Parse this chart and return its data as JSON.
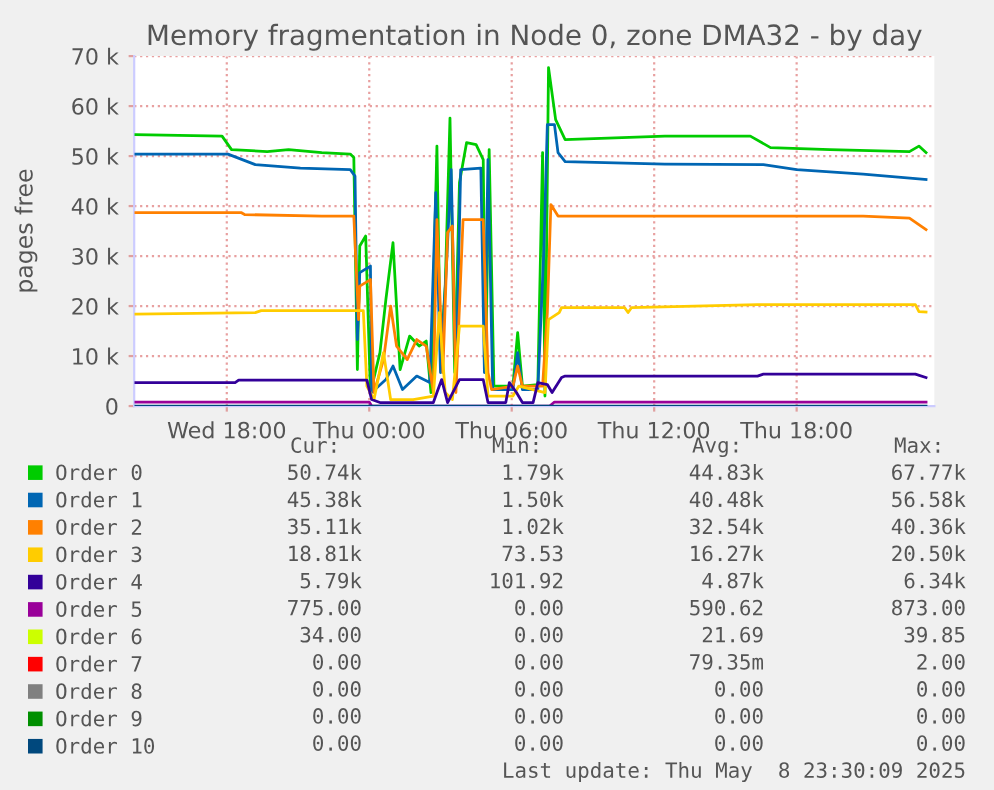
{
  "chart_data": {
    "type": "line",
    "title": "Memory fragmentation in Node 0, zone DMA32 - by day",
    "ylabel": "pages free",
    "xlim": [
      "2025-05-07T14:06",
      "2025-05-08T23:48"
    ],
    "ylim": [
      0,
      70000
    ],
    "xticks": [
      {
        "value": "2025-05-07T18:00",
        "label": "Wed 18:00"
      },
      {
        "value": "2025-05-08T00:00",
        "label": "Thu 00:00"
      },
      {
        "value": "2025-05-08T06:00",
        "label": "Thu 06:00"
      },
      {
        "value": "2025-05-08T12:00",
        "label": "Thu 12:00"
      },
      {
        "value": "2025-05-08T18:00",
        "label": "Thu 18:00"
      }
    ],
    "yticks": [
      0,
      {
        "value": 10000,
        "label": "10 k"
      },
      {
        "value": 20000,
        "label": "20 k"
      },
      {
        "value": 30000,
        "label": "30 k"
      },
      {
        "value": 40000,
        "label": "40 k"
      },
      {
        "value": 50000,
        "label": "50 k"
      },
      {
        "value": 60000,
        "label": "60 k"
      },
      {
        "value": 70000,
        "label": "70 k"
      }
    ],
    "grid": true,
    "legend": "bottom",
    "marker": "none",
    "line_style": "solid",
    "series": [
      {
        "name": "Order 0",
        "color": "#00cc00",
        "x": [
          "2025-05-07T14:10",
          "2025-05-07T17:48",
          "2025-05-07T18:12",
          "2025-05-07T19:42",
          "2025-05-07T20:36",
          "2025-05-07T22:00",
          "2025-05-07T23:12",
          "2025-05-07T23:21",
          "2025-05-07T23:30",
          "2025-05-07T23:36",
          "2025-05-07T23:51",
          "2025-05-08T00:03",
          "2025-05-08T00:27",
          "2025-05-08T00:42",
          "2025-05-08T01:00",
          "2025-05-08T01:18",
          "2025-05-08T01:42",
          "2025-05-08T02:06",
          "2025-05-08T02:24",
          "2025-05-08T02:36",
          "2025-05-08T02:51",
          "2025-05-08T03:00",
          "2025-05-08T03:12",
          "2025-05-08T03:24",
          "2025-05-08T03:36",
          "2025-05-08T03:48",
          "2025-05-08T04:06",
          "2025-05-08T04:30",
          "2025-05-08T04:48",
          "2025-05-08T04:54",
          "2025-05-08T05:03",
          "2025-05-08T05:15",
          "2025-05-08T06:03",
          "2025-05-08T06:15",
          "2025-05-08T06:27",
          "2025-05-08T07:06",
          "2025-05-08T07:18",
          "2025-05-08T07:24",
          "2025-05-08T07:33",
          "2025-05-08T07:51",
          "2025-05-08T08:15",
          "2025-05-08T12:27",
          "2025-05-08T16:03",
          "2025-05-08T16:54",
          "2025-05-08T19:24",
          "2025-05-08T22:45",
          "2025-05-08T23:09",
          "2025-05-08T23:27"
        ],
        "values": [
          54300,
          54000,
          51300,
          50900,
          51300,
          50700,
          50400,
          49700,
          7300,
          32000,
          34000,
          2700,
          10700,
          21300,
          32700,
          7300,
          14000,
          12000,
          13000,
          2700,
          52000,
          9300,
          24000,
          57600,
          6700,
          44700,
          52700,
          52300,
          49300,
          7300,
          51300,
          4000,
          4000,
          14700,
          4000,
          4300,
          50700,
          2000,
          67700,
          57300,
          53300,
          54000,
          54000,
          51700,
          51300,
          50900,
          52000,
          50700
        ]
      },
      {
        "name": "Order 1",
        "color": "#0066b3",
        "x": [
          "2025-05-07T14:10",
          "2025-05-07T18:03",
          "2025-05-07T19:12",
          "2025-05-07T21:06",
          "2025-05-07T23:12",
          "2025-05-07T23:24",
          "2025-05-07T23:30",
          "2025-05-07T23:36",
          "2025-05-08T00:03",
          "2025-05-08T00:06",
          "2025-05-08T00:42",
          "2025-05-08T01:00",
          "2025-05-08T01:24",
          "2025-05-08T02:00",
          "2025-05-08T02:33",
          "2025-05-08T02:48",
          "2025-05-08T03:00",
          "2025-05-08T03:15",
          "2025-05-08T03:27",
          "2025-05-08T03:39",
          "2025-05-08T03:51",
          "2025-05-08T04:42",
          "2025-05-08T04:51",
          "2025-05-08T05:00",
          "2025-05-08T05:12",
          "2025-05-08T06:03",
          "2025-05-08T06:15",
          "2025-05-08T06:27",
          "2025-05-08T07:06",
          "2025-05-08T07:21",
          "2025-05-08T07:30",
          "2025-05-08T07:48",
          "2025-05-08T07:57",
          "2025-05-08T08:15",
          "2025-05-08T12:27",
          "2025-05-08T16:36",
          "2025-05-08T18:00",
          "2025-05-08T20:48",
          "2025-05-08T23:27"
        ],
        "values": [
          50400,
          50400,
          48300,
          47600,
          47300,
          46000,
          13300,
          26700,
          28000,
          2700,
          5300,
          8000,
          3300,
          6000,
          4700,
          42700,
          6700,
          28000,
          47300,
          4000,
          47300,
          47600,
          6700,
          49300,
          3300,
          3300,
          10700,
          3300,
          3300,
          30700,
          56300,
          56300,
          50700,
          48900,
          48400,
          48300,
          47300,
          46400,
          45300
        ]
      },
      {
        "name": "Order 2",
        "color": "#ff8000",
        "x": [
          "2025-05-07T14:10",
          "2025-05-07T18:36",
          "2025-05-07T18:45",
          "2025-05-07T22:00",
          "2025-05-07T23:21",
          "2025-05-07T23:33",
          "2025-05-07T23:36",
          "2025-05-08T00:03",
          "2025-05-08T00:12",
          "2025-05-08T00:36",
          "2025-05-08T00:54",
          "2025-05-08T01:09",
          "2025-05-08T01:36",
          "2025-05-08T02:00",
          "2025-05-08T02:24",
          "2025-05-08T02:42",
          "2025-05-08T02:51",
          "2025-05-08T03:06",
          "2025-05-08T03:18",
          "2025-05-08T03:30",
          "2025-05-08T03:39",
          "2025-05-08T03:57",
          "2025-05-08T04:48",
          "2025-05-08T05:00",
          "2025-05-08T05:09",
          "2025-05-08T06:03",
          "2025-05-08T06:15",
          "2025-05-08T06:27",
          "2025-05-08T07:18",
          "2025-05-08T07:30",
          "2025-05-08T07:39",
          "2025-05-08T07:57",
          "2025-05-08T08:15",
          "2025-05-08T12:27",
          "2025-05-08T20:48",
          "2025-05-08T22:45",
          "2025-05-08T23:27"
        ],
        "values": [
          38700,
          38700,
          38300,
          38000,
          38000,
          17300,
          24000,
          25300,
          2700,
          9300,
          20000,
          12000,
          9300,
          13300,
          12000,
          2700,
          37300,
          6700,
          34700,
          36000,
          2700,
          37300,
          37300,
          6700,
          3300,
          4000,
          8000,
          4000,
          4000,
          18700,
          40300,
          38000,
          38000,
          38000,
          38000,
          37600,
          35300
        ]
      },
      {
        "name": "Order 3",
        "color": "#ffcc00",
        "x": [
          "2025-05-07T14:10",
          "2025-05-07T19:12",
          "2025-05-07T19:27",
          "2025-05-07T23:45",
          "2025-05-07T23:54",
          "2025-05-08T00:12",
          "2025-05-08T00:36",
          "2025-05-08T00:54",
          "2025-05-08T01:51",
          "2025-05-08T02:42",
          "2025-05-08T02:57",
          "2025-05-08T03:12",
          "2025-05-08T03:30",
          "2025-05-08T03:48",
          "2025-05-08T04:48",
          "2025-05-08T05:00",
          "2025-05-08T06:03",
          "2025-05-08T06:18",
          "2025-05-08T07:24",
          "2025-05-08T07:33",
          "2025-05-08T08:00",
          "2025-05-08T08:06",
          "2025-05-08T10:45",
          "2025-05-08T10:54",
          "2025-05-08T11:03",
          "2025-05-08T16:21",
          "2025-05-08T23:00",
          "2025-05-08T23:09",
          "2025-05-08T23:27"
        ],
        "values": [
          18400,
          18700,
          19100,
          19100,
          4000,
          1300,
          10700,
          1300,
          1300,
          2000,
          18700,
          2700,
          1300,
          16000,
          16000,
          2000,
          2000,
          4000,
          2700,
          17300,
          18700,
          19700,
          19700,
          18700,
          19700,
          20300,
          20300,
          18900,
          18800
        ]
      },
      {
        "name": "Order 4",
        "color": "#330099",
        "x": [
          "2025-05-07T14:10",
          "2025-05-07T18:21",
          "2025-05-07T18:30",
          "2025-05-07T23:54",
          "2025-05-08T00:06",
          "2025-05-08T00:27",
          "2025-05-08T02:42",
          "2025-05-08T02:51",
          "2025-05-08T03:03",
          "2025-05-08T03:18",
          "2025-05-08T03:48",
          "2025-05-08T04:48",
          "2025-05-08T05:00",
          "2025-05-08T05:45",
          "2025-05-08T05:54",
          "2025-05-08T06:12",
          "2025-05-08T06:27",
          "2025-05-08T06:54",
          "2025-05-08T07:06",
          "2025-05-08T07:30",
          "2025-05-08T07:42",
          "2025-05-08T08:06",
          "2025-05-08T08:15",
          "2025-05-08T16:21",
          "2025-05-08T16:36",
          "2025-05-08T23:00",
          "2025-05-08T23:27"
        ],
        "values": [
          4700,
          4700,
          5200,
          5200,
          1300,
          700,
          700,
          2700,
          5300,
          700,
          5300,
          5300,
          700,
          700,
          4700,
          2700,
          700,
          700,
          4700,
          4300,
          2700,
          5700,
          6000,
          6000,
          6400,
          6400,
          5700
        ]
      },
      {
        "name": "Order 5",
        "color": "#990099",
        "x": [
          "2025-05-07T14:10",
          "2025-05-08T00:00",
          "2025-05-08T00:06",
          "2025-05-08T07:36",
          "2025-05-08T07:48",
          "2025-05-08T23:27"
        ],
        "values": [
          800,
          800,
          0,
          0,
          800,
          800
        ]
      },
      {
        "name": "Order 6",
        "color": "#ccff00"
      },
      {
        "name": "Order 7",
        "color": "#ff0000"
      },
      {
        "name": "Order 8",
        "color": "#808080"
      },
      {
        "name": "Order 9",
        "color": "#008f00"
      },
      {
        "name": "Order 10",
        "color": "#00487d",
        "x": [
          "2025-05-07T14:10",
          "2025-05-08T23:27"
        ],
        "values": [
          0,
          0
        ]
      }
    ],
    "annotations": [
      "Cur:",
      "Min:",
      "Avg:",
      "Max:",
      "50.74k",
      "1.79k",
      "44.83k",
      "67.77k",
      "45.38k",
      "1.50k",
      "40.48k",
      "56.58k",
      "35.11k",
      "1.02k",
      "32.54k",
      "40.36k",
      "18.81k",
      "73.53",
      "16.27k",
      "20.50k",
      "5.79k",
      "101.92",
      "4.87k",
      "6.34k",
      "775.00",
      "0.00",
      "590.62",
      "873.00",
      "34.00",
      "0.00",
      "21.69",
      "39.85",
      "0.00",
      "0.00",
      "79.35m",
      "2.00",
      "0.00",
      "0.00",
      "0.00",
      "0.00",
      "0.00",
      "0.00",
      "0.00",
      "0.00",
      "0.00",
      "0.00",
      "0.00",
      "0.00",
      "Last update: Thu May  8 23:30:09 2025"
    ]
  }
}
